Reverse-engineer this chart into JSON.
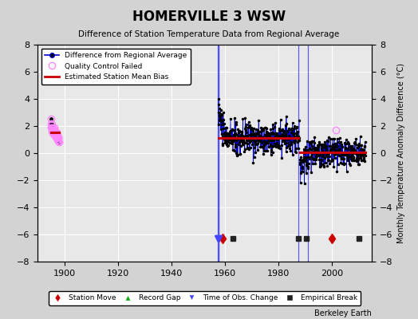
{
  "title": "HOMERVILLE 3 WSW",
  "subtitle": "Difference of Station Temperature Data from Regional Average",
  "ylabel": "Monthly Temperature Anomaly Difference (°C)",
  "xlim": [
    1890,
    2015
  ],
  "ylim": [
    -8,
    8
  ],
  "yticks": [
    -8,
    -6,
    -4,
    -2,
    0,
    2,
    4,
    6,
    8
  ],
  "xticks": [
    1900,
    1920,
    1940,
    1960,
    1980,
    2000
  ],
  "background_color": "#d3d3d3",
  "plot_bg_color": "#e8e8e8",
  "blue_line_color": "#0000cc",
  "red_bias_color": "#cc0000",
  "qc_marker_color": "#ff88ff",
  "data_marker_color": "#000000",
  "station_move_color": "#cc0000",
  "empirical_break_color": "#222222",
  "obs_change_color": "#4444ff",
  "record_gap_color": "#00aa00",
  "watermark": "Berkeley Earth",
  "early_x": [
    1895.0,
    1895.08,
    1895.17,
    1895.25,
    1895.33,
    1895.42,
    1895.5,
    1895.58,
    1895.67,
    1895.75,
    1895.83,
    1895.92,
    1896.0,
    1896.08,
    1896.17,
    1896.25,
    1896.33,
    1896.42,
    1896.5,
    1896.58,
    1896.67,
    1896.75,
    1896.83,
    1896.92,
    1897.0,
    1897.08,
    1897.17,
    1897.25,
    1897.33,
    1897.42,
    1897.5,
    1897.58,
    1897.67,
    1897.75,
    1897.83,
    1897.92
  ],
  "early_y": [
    2.5,
    2.2,
    1.9,
    2.1,
    1.8,
    1.6,
    1.9,
    1.7,
    1.5,
    1.8,
    1.6,
    1.4,
    1.7,
    1.9,
    1.6,
    1.4,
    1.7,
    1.5,
    1.3,
    1.6,
    1.4,
    1.2,
    1.5,
    1.3,
    1.5,
    1.3,
    1.1,
    1.4,
    1.2,
    1.0,
    1.3,
    1.1,
    0.9,
    1.2,
    1.0,
    0.8
  ],
  "qc_x": [
    1895.0,
    1895.08,
    1895.17,
    1895.25,
    1895.33,
    1895.42,
    1895.5,
    1895.58,
    1895.67,
    1895.75,
    1895.83,
    1895.92,
    1896.0,
    1896.08,
    1896.17,
    1896.25,
    1896.33,
    1896.42,
    1896.5,
    1896.58,
    1896.67,
    1896.75,
    1896.83,
    1896.92,
    1897.0,
    1897.08,
    1897.17,
    1897.25,
    1897.33,
    1897.42,
    1897.5,
    1897.58,
    1897.67,
    1897.75,
    1897.83,
    1897.92
  ],
  "qc_y": [
    2.5,
    2.2,
    1.9,
    2.1,
    1.8,
    1.6,
    1.9,
    1.7,
    1.5,
    1.8,
    1.6,
    1.4,
    1.7,
    1.9,
    1.6,
    1.4,
    1.7,
    1.5,
    1.3,
    1.6,
    1.4,
    1.2,
    1.5,
    1.3,
    1.5,
    1.3,
    1.1,
    1.4,
    1.2,
    1.0,
    1.3,
    1.1,
    0.9,
    1.2,
    1.0,
    0.8
  ],
  "late_qc_x": [
    2001.5
  ],
  "late_qc_y": [
    1.7
  ],
  "bias_segments": [
    {
      "x": [
        1895.0,
        1897.92
      ],
      "y": [
        1.5,
        1.5
      ]
    },
    {
      "x": [
        1957.5,
        1987.5
      ],
      "y": [
        1.1,
        1.1
      ]
    },
    {
      "x": [
        1988.0,
        2012.5
      ],
      "y": [
        0.05,
        0.05
      ]
    }
  ],
  "vlines": [
    1957.3,
    1957.5,
    1957.7,
    1987.5,
    1991.0
  ],
  "station_moves": [
    1959.0,
    2000.0
  ],
  "empirical_breaks": [
    1963.0,
    1987.5,
    1990.5,
    2010.0
  ],
  "obs_change_markers": [
    1957.3,
    1957.5,
    1957.7
  ],
  "marker_y": -6.3
}
